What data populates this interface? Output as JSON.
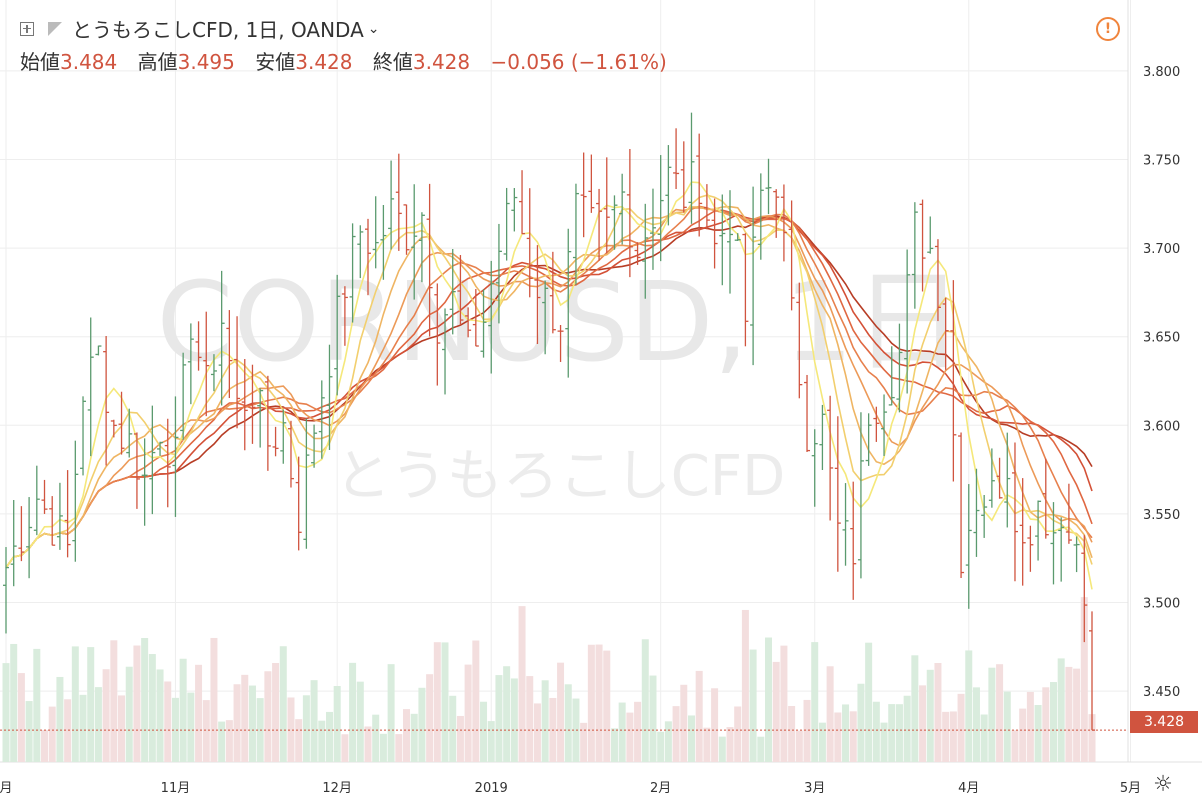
{
  "header": {
    "symbol": "とうもろこしCFD, 1日, OANDA",
    "open_label": "始値",
    "open_value": "3.484",
    "high_label": "高値",
    "high_value": "3.495",
    "low_label": "安値",
    "low_value": "3.428",
    "close_label": "終値",
    "close_value": "3.428",
    "change": "−0.056 (−1.61%)"
  },
  "watermark": {
    "main": "CORNUSD, 1日",
    "sub": "とうもろこしCFD"
  },
  "price_tag": "3.428",
  "colors": {
    "up": "#5a9a6e",
    "down": "#d0543f",
    "vol_up": "#d9ecdd",
    "vol_down": "#f3dede",
    "alert": "#f0843c"
  },
  "icons": {
    "compare": "plus-square-icon",
    "flag": "flag-icon",
    "alert": "alert-circle-icon",
    "settings": "gear-icon",
    "dropdown": "chevron-down-icon"
  },
  "chart_data": {
    "type": "ohlc",
    "y_ticks": [
      "3.800",
      "3.750",
      "3.700",
      "3.650",
      "3.600",
      "3.550",
      "3.500",
      "3.450"
    ],
    "ylim": [
      3.41,
      3.84
    ],
    "x_ticks": [
      {
        "label": "月",
        "i": 0
      },
      {
        "label": "11月",
        "i": 22
      },
      {
        "label": "12月",
        "i": 43
      },
      {
        "label": "2019",
        "i": 63
      },
      {
        "label": "2月",
        "i": 85
      },
      {
        "label": "3月",
        "i": 105
      },
      {
        "label": "4月",
        "i": 125
      },
      {
        "label": "5月",
        "i": 146
      }
    ],
    "n_bars": 142,
    "anchors_close": [
      [
        0,
        3.52
      ],
      [
        4,
        3.56
      ],
      [
        8,
        3.53
      ],
      [
        10,
        3.62
      ],
      [
        12,
        3.64
      ],
      [
        14,
        3.6
      ],
      [
        16,
        3.59
      ],
      [
        18,
        3.57
      ],
      [
        20,
        3.6
      ],
      [
        22,
        3.58
      ],
      [
        24,
        3.66
      ],
      [
        26,
        3.62
      ],
      [
        28,
        3.66
      ],
      [
        30,
        3.61
      ],
      [
        32,
        3.62
      ],
      [
        34,
        3.59
      ],
      [
        36,
        3.6
      ],
      [
        38,
        3.55
      ],
      [
        40,
        3.6
      ],
      [
        42,
        3.64
      ],
      [
        44,
        3.68
      ],
      [
        46,
        3.71
      ],
      [
        48,
        3.7
      ],
      [
        50,
        3.72
      ],
      [
        52,
        3.71
      ],
      [
        54,
        3.72
      ],
      [
        56,
        3.66
      ],
      [
        58,
        3.67
      ],
      [
        60,
        3.64
      ],
      [
        62,
        3.66
      ],
      [
        64,
        3.7
      ],
      [
        66,
        3.73
      ],
      [
        68,
        3.69
      ],
      [
        70,
        3.67
      ],
      [
        72,
        3.66
      ],
      [
        74,
        3.72
      ],
      [
        76,
        3.71
      ],
      [
        78,
        3.71
      ],
      [
        80,
        3.73
      ],
      [
        82,
        3.7
      ],
      [
        84,
        3.72
      ],
      [
        86,
        3.74
      ],
      [
        88,
        3.73
      ],
      [
        90,
        3.74
      ],
      [
        92,
        3.7
      ],
      [
        94,
        3.72
      ],
      [
        96,
        3.66
      ],
      [
        98,
        3.73
      ],
      [
        100,
        3.74
      ],
      [
        102,
        3.66
      ],
      [
        104,
        3.6
      ],
      [
        106,
        3.6
      ],
      [
        108,
        3.54
      ],
      [
        110,
        3.53
      ],
      [
        112,
        3.61
      ],
      [
        114,
        3.62
      ],
      [
        116,
        3.64
      ],
      [
        118,
        3.71
      ],
      [
        120,
        3.7
      ],
      [
        122,
        3.66
      ],
      [
        124,
        3.53
      ],
      [
        126,
        3.56
      ],
      [
        128,
        3.56
      ],
      [
        130,
        3.58
      ],
      [
        132,
        3.53
      ],
      [
        134,
        3.56
      ],
      [
        136,
        3.54
      ],
      [
        138,
        3.55
      ],
      [
        140,
        3.5
      ],
      [
        141,
        3.428
      ]
    ],
    "ribbon_lengths": [
      5,
      8,
      11,
      14,
      17,
      20,
      23,
      26
    ],
    "ribbon_colors": [
      "#f5e87a",
      "#f2cf6e",
      "#efb563",
      "#ec9a58",
      "#e7804d",
      "#e06842",
      "#d45137",
      "#b73d25"
    ],
    "last_open": 3.484,
    "last_high": 3.495,
    "last_low": 3.428,
    "last_close": 3.428
  }
}
